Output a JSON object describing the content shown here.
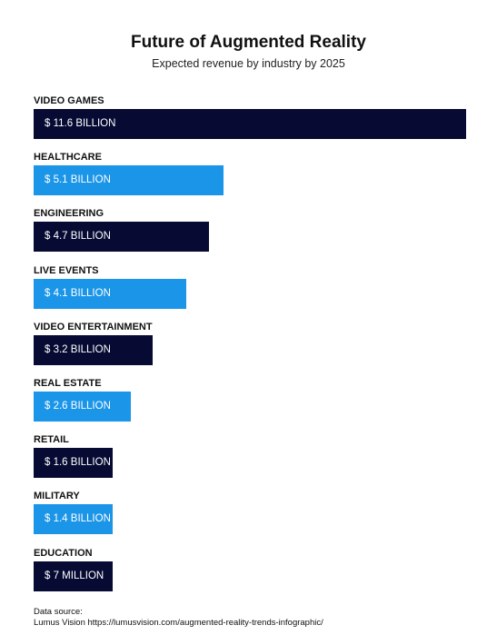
{
  "chart_data": {
    "type": "bar",
    "orientation": "horizontal",
    "title": "Future of Augmented Reality",
    "subtitle": "Expected revenue by industry by 2025",
    "unit": "billion USD",
    "categories": [
      "VIDEO GAMES",
      "HEALTHCARE",
      "ENGINEERING",
      "LIVE EVENTS",
      "VIDEO ENTERTAINMENT",
      "REAL ESTATE",
      "RETAIL",
      "MILITARY",
      "EDUCATION"
    ],
    "values": [
      11.6,
      5.1,
      4.7,
      4.1,
      3.2,
      2.6,
      1.6,
      1.4,
      0.007
    ],
    "data_labels": [
      "$ 11.6 BILLION",
      "$ 5.1 BILLION",
      "$ 4.7 BILLION",
      "$ 4.1 BILLION",
      "$ 3.2 BILLION",
      "$ 2.6 BILLION",
      "$ 1.6 BILLION",
      "$ 1.4 BILLION",
      "$ 7 MILLION"
    ],
    "bar_colors": [
      "#070b33",
      "#1b95e8",
      "#070b33",
      "#1b95e8",
      "#070b33",
      "#1b95e8",
      "#070b33",
      "#1b95e8",
      "#070b33"
    ],
    "grid": false,
    "legend": "none"
  },
  "source": {
    "line1": "Data source:",
    "line2": "Lumus Vision https://lumusvision.com/augmented-reality-trends-infographic/"
  }
}
